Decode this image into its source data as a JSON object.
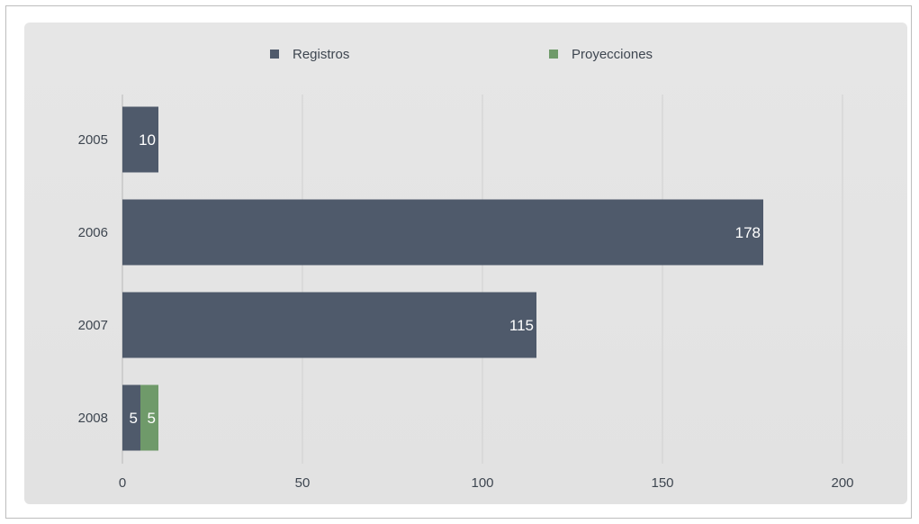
{
  "chart_data": {
    "type": "bar",
    "orientation": "horizontal",
    "stacked": true,
    "categories": [
      "2005",
      "2006",
      "2007",
      "2008"
    ],
    "series": [
      {
        "name": "Registros",
        "values": [
          10,
          178,
          115,
          5
        ],
        "color": "#4f5a6b"
      },
      {
        "name": "Proyecciones",
        "values": [
          0,
          0,
          0,
          5
        ],
        "color": "#6f9a6a"
      }
    ],
    "title": "",
    "xlabel": "",
    "ylabel": "",
    "xlim": [
      0,
      200
    ],
    "xticks": [
      0,
      50,
      100,
      150,
      200
    ],
    "grid": true,
    "legend": "top-center",
    "gridColor": "#d0d0d0",
    "axisColor": "#c7c7c7"
  }
}
